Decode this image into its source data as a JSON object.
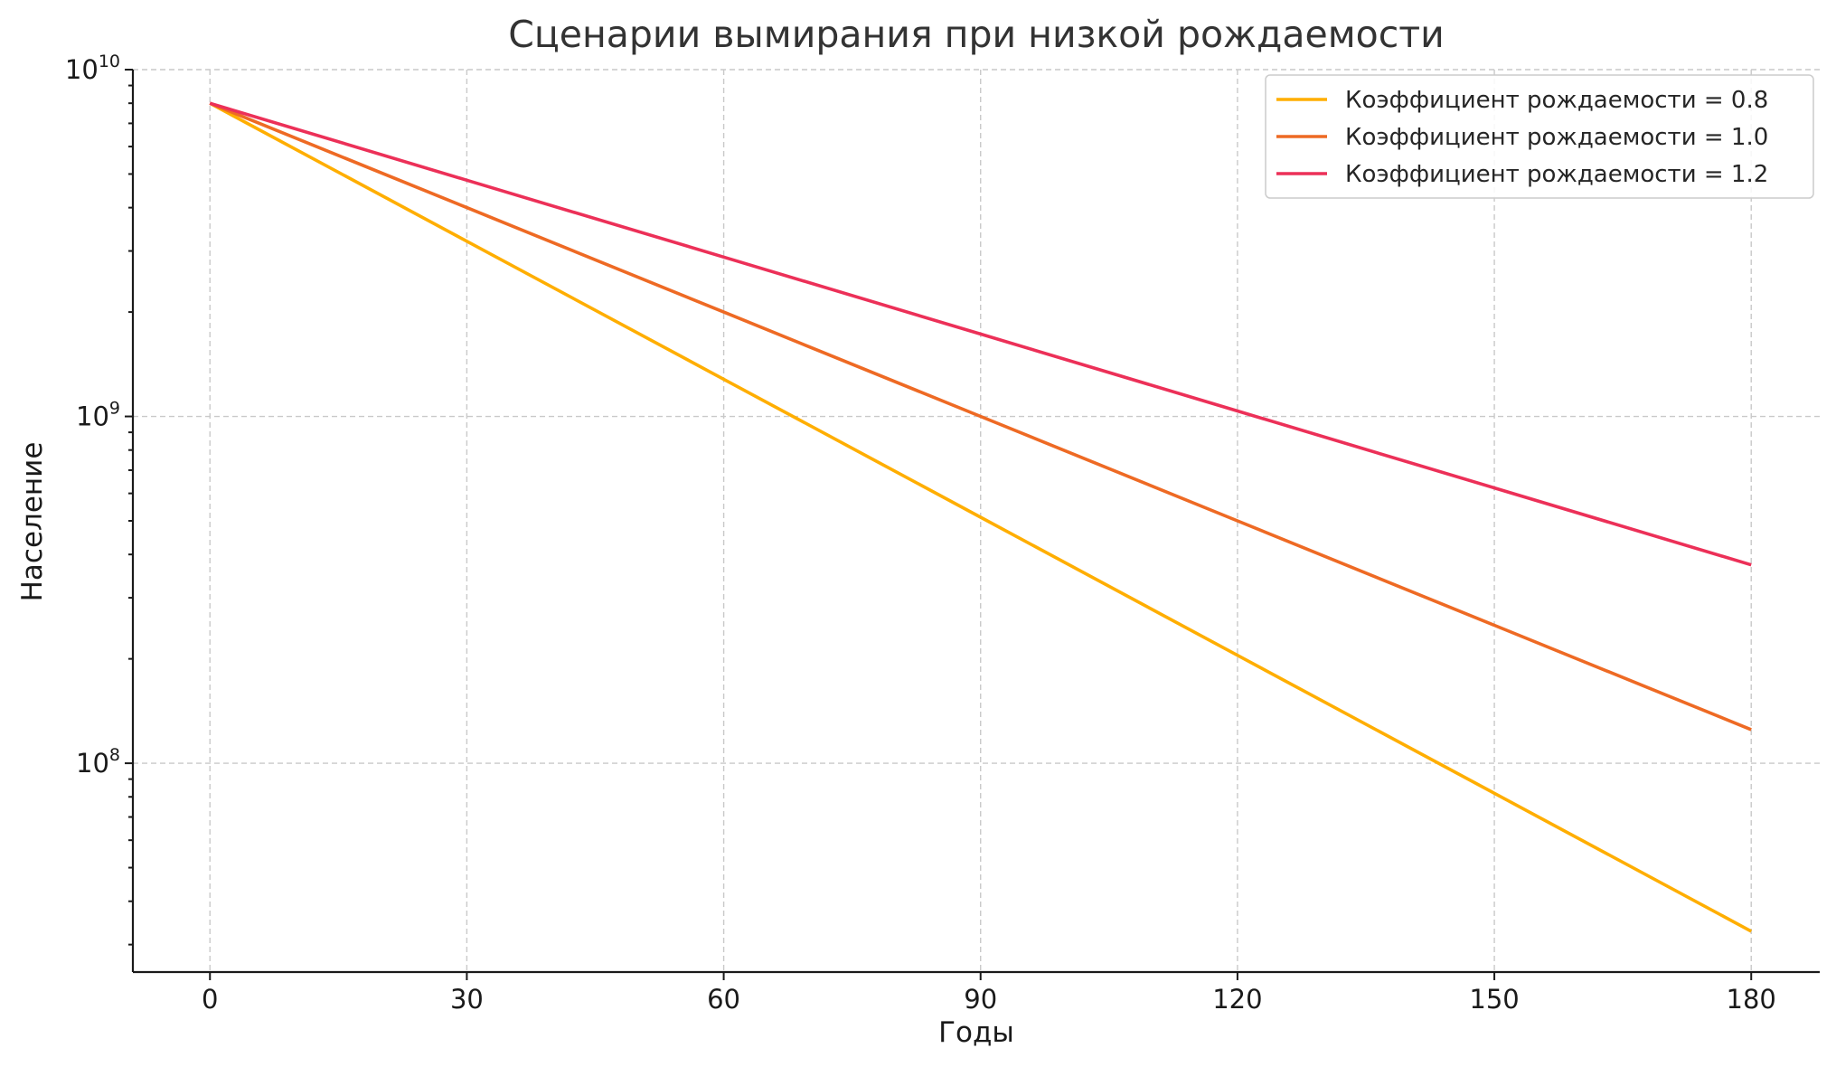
{
  "chart_data": {
    "type": "line",
    "title": "Сценарии вымирания при низкой рождаемости",
    "xlabel": "Годы",
    "ylabel": "Население",
    "yscale": "log",
    "grid": true,
    "legend_position": "top-right",
    "xlim": [
      -9,
      188
    ],
    "ylim": [
      25000000,
      10000000000
    ],
    "x_ticks": [
      0,
      30,
      60,
      90,
      120,
      150,
      180
    ],
    "x_tick_labels": [
      "0",
      "30",
      "60",
      "90",
      "120",
      "150",
      "180"
    ],
    "y_ticks": [
      100000000,
      1000000000,
      10000000000
    ],
    "y_tick_labels": [
      {
        "base": "10",
        "exp": "8"
      },
      {
        "base": "10",
        "exp": "9"
      },
      {
        "base": "10",
        "exp": "10"
      }
    ],
    "x": [
      0,
      30,
      60,
      90,
      120,
      150,
      180
    ],
    "series": [
      {
        "name": "Коэффициент рождаемости = 0.8",
        "color": "#ffae00",
        "values": [
          8000000000,
          3200000000,
          1280000000,
          512000000,
          204800000,
          81920000,
          32768000
        ]
      },
      {
        "name": "Коэффициент рождаемости = 1.0",
        "color": "#ee6a24",
        "values": [
          8000000000,
          4000000000,
          2000000000,
          1000000000,
          500000000,
          250000000,
          125000000
        ]
      },
      {
        "name": "Коэффициент рождаемости = 1.2",
        "color": "#ec3058",
        "values": [
          8000000000,
          4800000000,
          2880000000,
          1728000000,
          1036800000,
          622080000,
          373248000
        ]
      }
    ]
  }
}
